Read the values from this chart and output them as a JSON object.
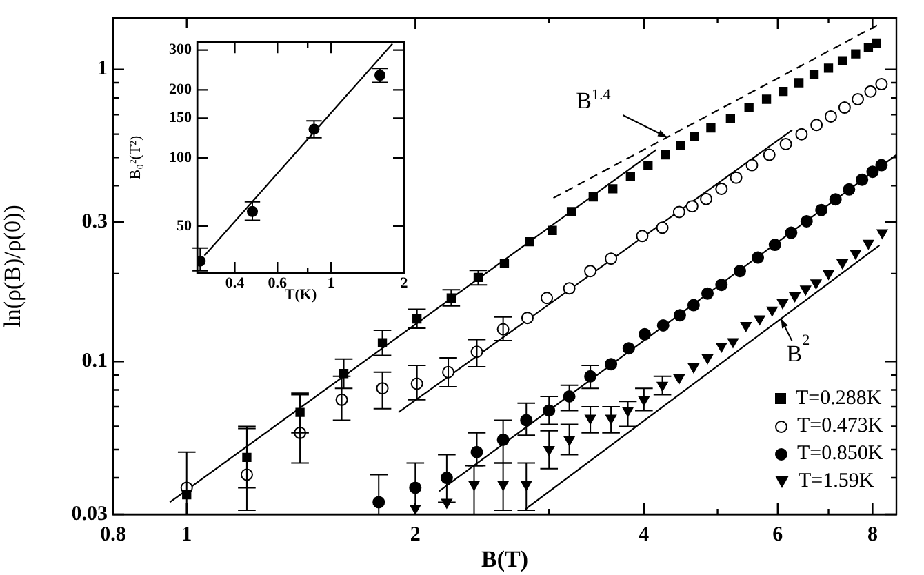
{
  "chart_data": [
    {
      "type": "scatter",
      "xlabel": "B(T)",
      "ylabel": "ln(ρ(B)/ρ(0))",
      "log": "xy",
      "xlim": [
        0.8,
        8.6
      ],
      "ylim": [
        0.03,
        1.5
      ],
      "xticks": [
        0.8,
        1,
        2,
        {
          "value": 3,
          "label": null
        },
        4,
        {
          "value": 5,
          "label": null
        },
        6,
        {
          "value": 7,
          "label": null
        },
        8
      ],
      "yticks": [
        0.03,
        {
          "value": 0.04,
          "label": null
        },
        {
          "value": 0.05,
          "label": null
        },
        {
          "value": 0.06,
          "label": null
        },
        {
          "value": 0.07,
          "label": null
        },
        {
          "value": 0.08,
          "label": null
        },
        {
          "value": 0.09,
          "label": null
        },
        0.1,
        {
          "value": 0.2,
          "label": null
        },
        0.3,
        {
          "value": 0.4,
          "label": null
        },
        {
          "value": 0.5,
          "label": null
        },
        {
          "value": 0.6,
          "label": null
        },
        {
          "value": 0.7,
          "label": null
        },
        {
          "value": 0.8,
          "label": null
        },
        {
          "value": 0.9,
          "label": null
        },
        1
      ],
      "legend": "bottom right",
      "annotations": [
        {
          "text": "B$^{1.4}$",
          "x": 4.29,
          "y": 0.586
        },
        {
          "text": "B$^{2}$",
          "x": 6.06,
          "y": 0.14
        }
      ],
      "series": [
        {
          "name": "T=0.288K",
          "color": "#000000",
          "marker": "square",
          "x": [
            1.0,
            1.2,
            1.41,
            1.61,
            1.81,
            2.01,
            2.23,
            2.42,
            2.62,
            2.83,
            3.03,
            3.21,
            3.43,
            3.64,
            3.84,
            4.05,
            4.27,
            4.47,
            4.66,
            4.9,
            5.2,
            5.5,
            5.8,
            6.1,
            6.4,
            6.7,
            7.0,
            7.3,
            7.6,
            7.9,
            8.1
          ],
          "values": [
            0.035,
            0.047,
            0.067,
            0.091,
            0.116,
            0.14,
            0.165,
            0.194,
            0.217,
            0.257,
            0.281,
            0.326,
            0.366,
            0.39,
            0.43,
            0.47,
            0.51,
            0.55,
            0.59,
            0.63,
            0.68,
            0.74,
            0.79,
            0.84,
            0.9,
            0.96,
            1.01,
            1.07,
            1.13,
            1.19,
            1.23
          ],
          "errors": [
            null,
            [
              0.037,
              0.06
            ],
            [
              0.057,
              0.078
            ],
            [
              0.081,
              0.102
            ],
            [
              0.105,
              0.128
            ],
            [
              0.13,
              0.151
            ],
            [
              0.155,
              0.176
            ],
            [
              0.183,
              0.205
            ],
            null,
            null,
            null,
            null,
            null,
            null,
            null,
            null,
            null,
            null,
            null,
            null,
            null,
            null,
            null,
            null,
            null,
            null,
            null,
            null,
            null,
            null,
            null
          ]
        },
        {
          "name": "T=0.473K",
          "color": "#ffffff",
          "marker": "circle",
          "x": [
            1.0,
            1.2,
            1.41,
            1.6,
            1.81,
            2.01,
            2.21,
            2.41,
            2.61,
            2.81,
            2.98,
            3.19,
            3.4,
            3.62,
            3.98,
            4.23,
            4.45,
            4.63,
            4.83,
            5.06,
            5.29,
            5.55,
            5.85,
            6.15,
            6.45,
            6.75,
            7.05,
            7.35,
            7.65,
            7.95,
            8.22
          ],
          "values": [
            0.037,
            0.041,
            0.057,
            0.074,
            0.081,
            0.084,
            0.092,
            0.108,
            0.129,
            0.141,
            0.165,
            0.178,
            0.204,
            0.225,
            0.269,
            0.287,
            0.325,
            0.34,
            0.36,
            0.39,
            0.426,
            0.47,
            0.51,
            0.555,
            0.6,
            0.645,
            0.69,
            0.74,
            0.79,
            0.84,
            0.89
          ],
          "errors": [
            [
              0.03,
              0.049
            ],
            [
              0.031,
              0.059
            ],
            [
              0.045,
              0.077
            ],
            [
              0.063,
              0.089
            ],
            [
              0.069,
              0.092
            ],
            [
              0.074,
              0.097
            ],
            [
              0.082,
              0.103
            ],
            [
              0.096,
              0.119
            ],
            [
              0.118,
              0.142
            ],
            null,
            null,
            null,
            null,
            null,
            null,
            null,
            null,
            null,
            null,
            null,
            null,
            null,
            null,
            null,
            null,
            null,
            null,
            null,
            null,
            null,
            null
          ]
        },
        {
          "name": "T=0.850K",
          "color": "#000000",
          "marker": "circle",
          "x": [
            1.79,
            2.0,
            2.2,
            2.41,
            2.61,
            2.8,
            3.0,
            3.19,
            3.4,
            3.62,
            3.82,
            4.01,
            4.24,
            4.46,
            4.65,
            4.85,
            5.06,
            5.35,
            5.65,
            5.95,
            6.25,
            6.55,
            6.85,
            7.15,
            7.45,
            7.75,
            8.0,
            8.22
          ],
          "values": [
            0.033,
            0.037,
            0.04,
            0.049,
            0.054,
            0.063,
            0.068,
            0.076,
            0.089,
            0.098,
            0.111,
            0.124,
            0.133,
            0.144,
            0.156,
            0.171,
            0.183,
            0.204,
            0.227,
            0.251,
            0.276,
            0.302,
            0.33,
            0.359,
            0.388,
            0.419,
            0.446,
            0.47
          ],
          "errors": [
            [
              0.03,
              0.041
            ],
            [
              0.03,
              0.045
            ],
            [
              0.033,
              0.048
            ],
            [
              0.044,
              0.057
            ],
            [
              0.045,
              0.063
            ],
            [
              0.056,
              0.072
            ],
            [
              0.061,
              0.076
            ],
            [
              0.068,
              0.083
            ],
            [
              0.081,
              0.097
            ],
            null,
            null,
            null,
            null,
            null,
            null,
            null,
            null,
            null,
            null,
            null,
            null,
            null,
            null,
            null,
            null,
            null,
            null,
            null
          ]
        },
        {
          "name": "T=1.59K",
          "color": "#000000",
          "marker": "triangle",
          "x": [
            2.0,
            2.2,
            2.39,
            2.61,
            2.8,
            3.0,
            3.19,
            3.4,
            3.62,
            3.81,
            4.0,
            4.23,
            4.45,
            4.65,
            4.85,
            5.06,
            5.24,
            5.45,
            5.68,
            5.9,
            6.09,
            6.32,
            6.53,
            6.74,
            7.0,
            7.3,
            7.6,
            7.9,
            8.24
          ],
          "values": [
            0.0315,
            0.033,
            0.038,
            0.038,
            0.038,
            0.05,
            0.054,
            0.064,
            0.064,
            0.068,
            0.074,
            0.083,
            0.088,
            0.096,
            0.103,
            0.113,
            0.117,
            0.133,
            0.14,
            0.15,
            0.159,
            0.168,
            0.177,
            0.186,
            0.2,
            0.218,
            0.235,
            0.254,
            0.276
          ],
          "errors": [
            null,
            null,
            [
              0.03,
              0.044
            ],
            [
              0.031,
              0.045
            ],
            [
              0.031,
              0.045
            ],
            [
              0.043,
              0.058
            ],
            [
              0.048,
              0.061
            ],
            [
              0.057,
              0.07
            ],
            [
              0.057,
              0.07
            ],
            [
              0.06,
              0.073
            ],
            [
              0.068,
              0.081
            ],
            [
              0.077,
              0.089
            ],
            null,
            null,
            null,
            null,
            null,
            null,
            null,
            null,
            null,
            null,
            null,
            null,
            null,
            null,
            null,
            null,
            null
          ]
        },
        {
          "type": "line",
          "color": "#000000",
          "marker": "none",
          "x": [
            0.95,
            4.15
          ],
          "values": [
            0.033,
            0.53
          ]
        },
        {
          "type": "line",
          "color": "#000000",
          "marker": "none",
          "x": [
            1.9,
            6.27
          ],
          "values": [
            0.067,
            0.62
          ]
        },
        {
          "type": "line",
          "color": "#000000",
          "marker": "none",
          "x": [
            2.15,
            8.6
          ],
          "values": [
            0.036,
            0.51
          ]
        },
        {
          "type": "line",
          "color": "#000000",
          "marker": "none",
          "x": [
            2.79,
            8.17
          ],
          "values": [
            0.0312,
            0.25
          ]
        },
        {
          "type": "line",
          "color": "#000000",
          "marker": "none",
          "line_style": "dashed",
          "x": [
            3.04,
            8.17
          ],
          "values": [
            0.363,
            1.43
          ]
        }
      ]
    },
    {
      "type": "scatter",
      "xlabel": "T(K)",
      "ylabel": "B₀²(T²)",
      "log": "xy",
      "xlim": [
        0.28,
        2
      ],
      "ylim": [
        31,
        325
      ],
      "xticks": [
        0.4,
        0.6,
        {
          "value": 0.8,
          "label": null
        },
        1,
        2
      ],
      "yticks": [
        50,
        100,
        150,
        200,
        300
      ],
      "series": [
        {
          "color": "#000000",
          "marker": "circle",
          "x": [
            0.288,
            0.473,
            0.85,
            1.59
          ],
          "values": [
            35,
            58,
            134,
            232
          ],
          "errors": [
            [
              31.7,
              40
            ],
            [
              53,
              64
            ],
            [
              123,
              146
            ],
            [
              216,
              249
            ]
          ]
        },
        {
          "type": "line",
          "color": "#000000",
          "marker": "none",
          "x": [
            0.3,
            1.79
          ],
          "values": [
            37,
            320
          ]
        }
      ]
    }
  ]
}
